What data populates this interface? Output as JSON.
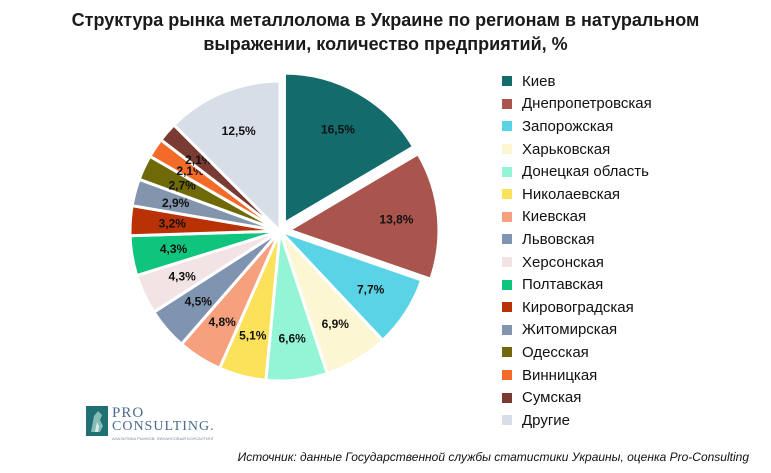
{
  "title_lines": [
    "Структура рынка металлолома в Украине по регионам в натуральном",
    "выражении, количество предприятий, %"
  ],
  "source": "Источник: данные Государственной службы статистики Украины, оценка Pro-Consulting",
  "logo": {
    "line1": "PRO",
    "line2": "CONSULTING.",
    "sub": "АНАЛИТИКА РЫНКОВ. ФИНАНСОВЫЙ КОНСАЛТИНГ"
  },
  "chart_data": {
    "type": "pie",
    "legend_position": "right",
    "categories": [
      "Киев",
      "Днепропетровская",
      "Запорожская",
      "Харьковская",
      "Донецкая область",
      "Николаевская",
      "Киевская",
      "Львовская",
      "Херсонская",
      "Полтавская",
      "Кировоградская",
      "Житомирская",
      "Одесская",
      "Винницкая",
      "Сумская",
      "Другие"
    ],
    "values": [
      16.5,
      13.8,
      7.7,
      6.9,
      6.6,
      5.1,
      4.8,
      4.5,
      4.3,
      4.3,
      3.2,
      2.9,
      2.7,
      2.1,
      2.1,
      12.5
    ],
    "labels": [
      "16,5%",
      "13,8%",
      "7,7%",
      "6,9%",
      "6,6%",
      "5,1%",
      "4,8%",
      "4,5%",
      "4,3%",
      "4,3%",
      "3,2%",
      "2,9%",
      "2,7%",
      "2,1%",
      "2,1%",
      "12,5%"
    ],
    "colors": [
      "#136b6b",
      "#a9544c",
      "#5ad3e6",
      "#fdf6d2",
      "#93f5d6",
      "#fce15b",
      "#f6a07e",
      "#7f94b0",
      "#f2e4e4",
      "#0fc47c",
      "#b83205",
      "#8295ad",
      "#6f6a07",
      "#f46a29",
      "#7a3b33",
      "#d8dee8"
    ],
    "exploded": [
      0,
      1
    ]
  }
}
